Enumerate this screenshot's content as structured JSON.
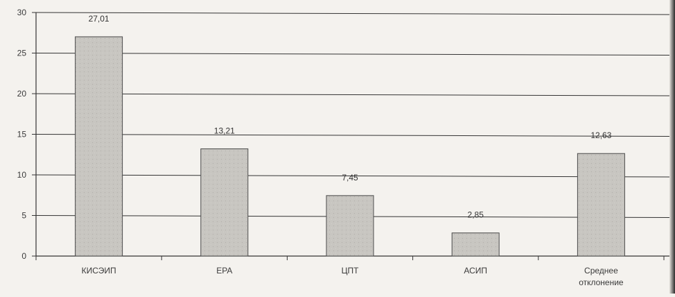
{
  "chart_data": {
    "type": "bar",
    "title": "",
    "xlabel": "",
    "ylabel": "",
    "ylim": [
      0,
      30
    ],
    "yticks": [
      0,
      5,
      10,
      15,
      20,
      25,
      30
    ],
    "grid": true,
    "categories": [
      "КИСЭИП",
      "ЕРА",
      "ЦПТ",
      "АСИП",
      "Среднее отклонение"
    ],
    "values": [
      27.01,
      13.21,
      7.45,
      2.85,
      12.63
    ],
    "value_labels": [
      "27,01",
      "13,21",
      "7,45",
      "2,85",
      "12,63"
    ],
    "colors": {
      "bar_fill": "#c8c6c1",
      "bar_stroke": "#4a4a4a",
      "grid": "#333333",
      "axis": "#333333"
    }
  }
}
